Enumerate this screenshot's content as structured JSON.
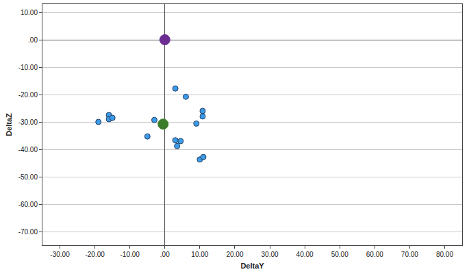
{
  "chart_data": {
    "type": "scatter",
    "x_label": "DeltaY",
    "y_label": "DeltaZ",
    "series": [
      {
        "color": "#3d9be6",
        "marker": "circle",
        "x": [
          -19,
          -16,
          -16,
          -15,
          -3,
          -5,
          3,
          6,
          3,
          4.5,
          3.5,
          10.8,
          10.8,
          9,
          10,
          11
        ],
        "values": [
          -30,
          -27.5,
          -29,
          -28.5,
          -29.3,
          -35.3,
          -17.8,
          -20.8,
          -36.7,
          -37,
          -38.8,
          -26,
          -28,
          -30.6,
          -43.7,
          -42.8
        ]
      },
      {
        "color": "#6b2d91",
        "marker": "circle",
        "x": [
          0
        ],
        "values": [
          0
        ]
      },
      {
        "color": "#3b7d2b",
        "marker": "circle",
        "x": [
          -0.5
        ],
        "values": [
          -30.8
        ]
      }
    ],
    "xlim": [
      -35,
      85
    ],
    "ylim": [
      -75,
      13
    ],
    "xticks": [
      {
        "value": -30,
        "label": "-30.00"
      },
      {
        "value": -20,
        "label": "-20.00"
      },
      {
        "value": -10,
        "label": "-10.00"
      },
      {
        "value": 0,
        "label": ".00"
      },
      {
        "value": 10,
        "label": "10.00"
      },
      {
        "value": 20,
        "label": "20.00"
      },
      {
        "value": 30,
        "label": "30.00"
      },
      {
        "value": 40,
        "label": "40.00"
      },
      {
        "value": 50,
        "label": "50.00"
      },
      {
        "value": 60,
        "label": "60.00"
      },
      {
        "value": 70,
        "label": "70.00"
      },
      {
        "value": 80,
        "label": "80.00"
      }
    ],
    "yticks": [
      {
        "value": -70,
        "label": "-70.00"
      },
      {
        "value": -60,
        "label": "-60.00"
      },
      {
        "value": -50,
        "label": "-50.00"
      },
      {
        "value": -40,
        "label": "-40.00"
      },
      {
        "value": -30,
        "label": "-30.00"
      },
      {
        "value": -20,
        "label": "-20.00"
      },
      {
        "value": -10,
        "label": "-10.00"
      },
      {
        "value": 0,
        "label": ".00"
      },
      {
        "value": 10,
        "label": "10.00"
      }
    ],
    "grid": "y"
  }
}
